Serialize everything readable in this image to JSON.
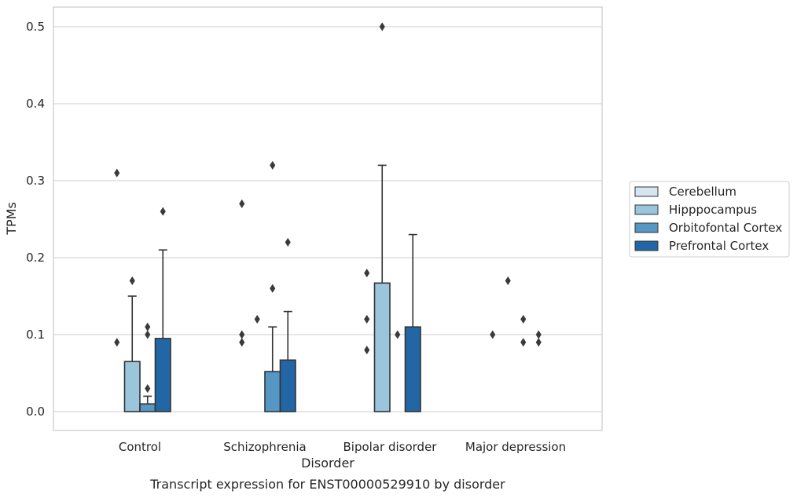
{
  "chart_data": {
    "type": "bar",
    "title": "",
    "caption": "Transcript expression for ENST00000529910 by disorder",
    "xlabel": "Disorder",
    "ylabel": "TPMs",
    "ylim": [
      -0.025,
      0.525
    ],
    "yticks": [
      "0.0",
      "0.1",
      "0.2",
      "0.3",
      "0.4",
      "0.5"
    ],
    "grid": true,
    "legend_position": "right",
    "categories": [
      "Control",
      "Schizophrenia",
      "Bipolar disorder",
      "Major depression"
    ],
    "series": [
      {
        "name": "Cerebellum",
        "color": "#d5e5f2",
        "values": [
          0.0,
          0.0,
          0.0,
          0.0
        ],
        "error_top": [
          null,
          null,
          null,
          null
        ],
        "outliers": [
          [
            0.09,
            0.31
          ],
          [
            0.27,
            0.1,
            0.09
          ],
          [
            0.08,
            0.12,
            0.18
          ],
          [
            0.1
          ]
        ]
      },
      {
        "name": "Hipppocampus",
        "color": "#9ac5dc",
        "values": [
          0.065,
          0.0,
          0.167,
          0.0
        ],
        "error_top": [
          0.15,
          null,
          0.32,
          null
        ],
        "outliers": [
          [
            0.17
          ],
          [
            0.12
          ],
          [
            0.5
          ],
          [
            0.17
          ]
        ]
      },
      {
        "name": "Orbitofontal Cortex",
        "color": "#5598c5",
        "values": [
          0.01,
          0.052,
          0.0,
          0.0
        ],
        "error_top": [
          0.02,
          0.11,
          null,
          null
        ],
        "outliers": [
          [
            0.03,
            0.1,
            0.11
          ],
          [
            0.16,
            0.32
          ],
          [
            0.1
          ],
          [
            0.09,
            0.12
          ]
        ]
      },
      {
        "name": "Prefrontal Cortex",
        "color": "#2366a5",
        "values": [
          0.095,
          0.067,
          0.11,
          0.0
        ],
        "error_top": [
          0.21,
          0.13,
          0.23,
          null
        ],
        "outliers": [
          [
            0.26
          ],
          [
            0.22
          ],
          [],
          [
            0.09,
            0.1
          ]
        ]
      }
    ]
  }
}
